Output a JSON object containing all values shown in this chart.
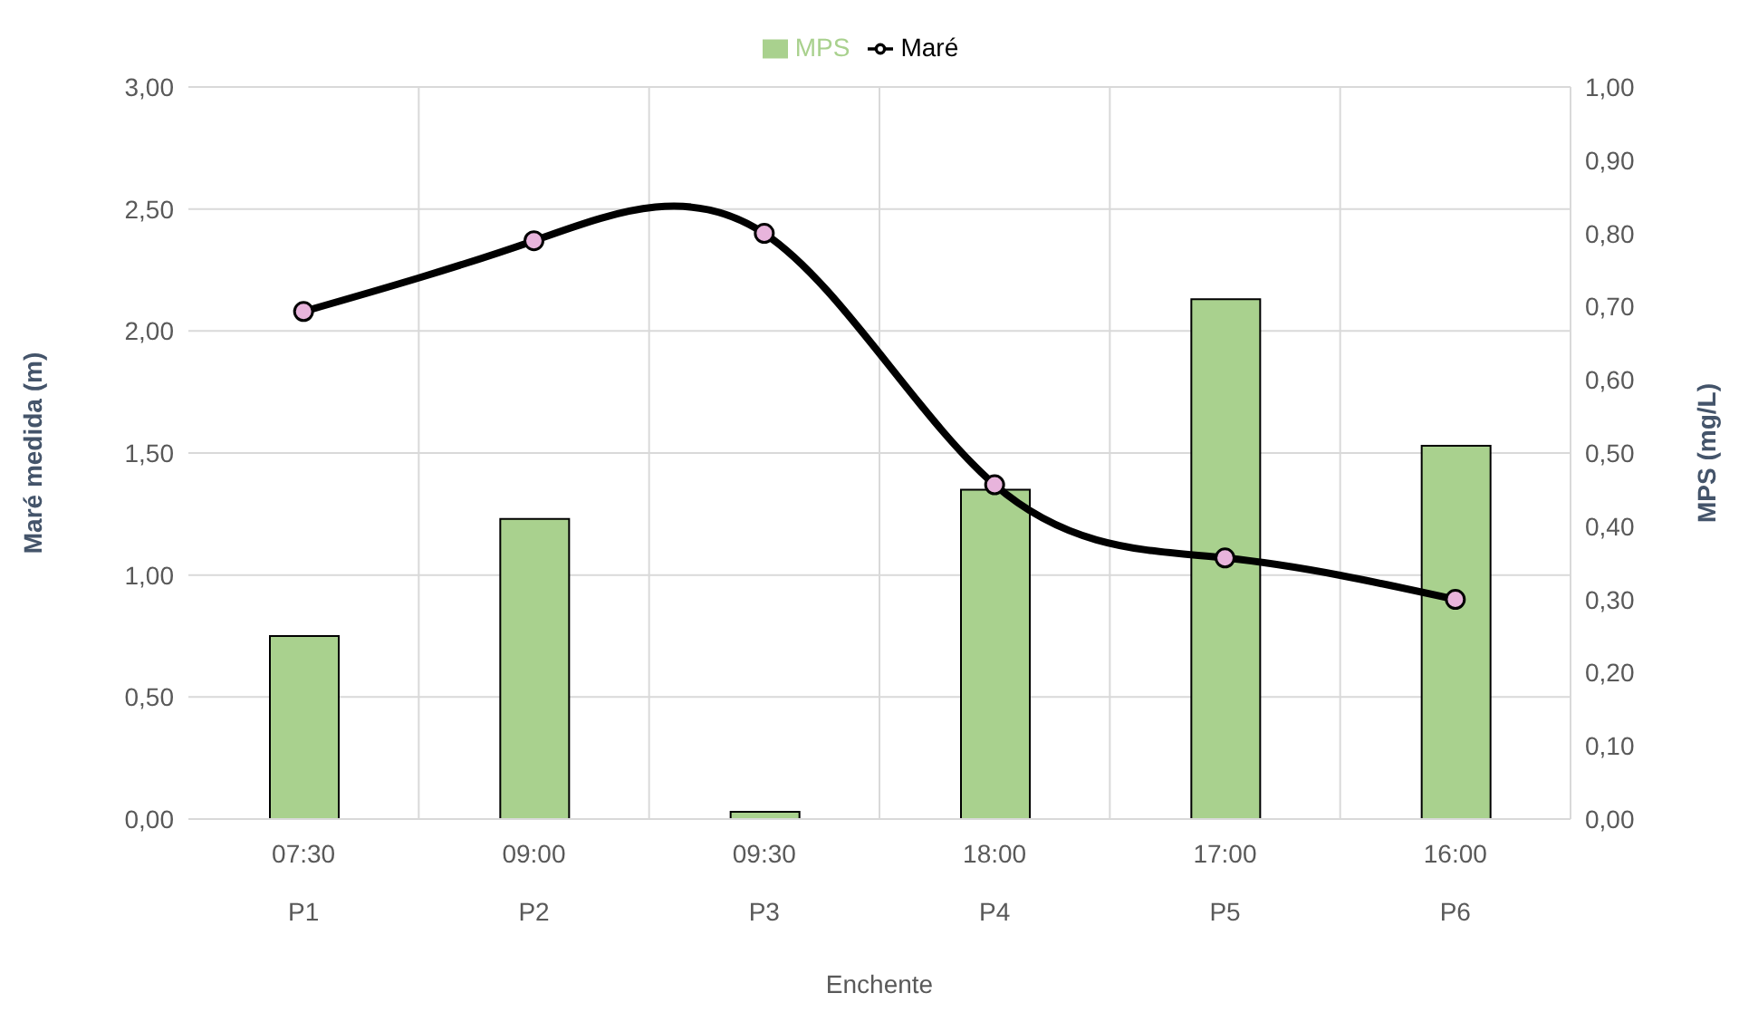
{
  "chart_data": {
    "type": "bar",
    "xlabel": "Enchente",
    "ylabel": "Maré medida (m)",
    "y2label": "MPS (mg/L)",
    "categories": [
      "07:30\nP1",
      "09:00\nP2",
      "09:30\nP3",
      "18:00\nP4",
      "17:00\nP5",
      "16:00\nP6"
    ],
    "series": [
      {
        "name": "MPS",
        "axis": "y2",
        "color": "#a9d18e",
        "values": [
          0.25,
          0.41,
          0.01,
          0.45,
          0.71,
          0.51
        ]
      },
      {
        "name": "Maré",
        "type": "line",
        "color": "#000000",
        "values": [
          2.08,
          2.37,
          2.4,
          1.37,
          1.07,
          0.9
        ],
        "marker": "circle"
      }
    ],
    "ylim": [
      0,
      3
    ],
    "yticks": [
      {
        "value": 0,
        "label": "0,00"
      },
      {
        "value": 0.5,
        "label": "0,50"
      },
      {
        "value": 1,
        "label": "1,00"
      },
      {
        "value": 1.5,
        "label": "1,50"
      },
      {
        "value": 2,
        "label": "2,00"
      },
      {
        "value": 2.5,
        "label": "2,50"
      },
      {
        "value": 3,
        "label": "3,00"
      }
    ],
    "y2lim": [
      0,
      1
    ],
    "y2ticks": [
      {
        "value": 0,
        "label": "0,00"
      },
      {
        "value": 0.1,
        "label": "0,10"
      },
      {
        "value": 0.2,
        "label": "0,20"
      },
      {
        "value": 0.3,
        "label": "0,30"
      },
      {
        "value": 0.4,
        "label": "0,40"
      },
      {
        "value": 0.5,
        "label": "0,50"
      },
      {
        "value": 0.6,
        "label": "0,60"
      },
      {
        "value": 0.7,
        "label": "0,70"
      },
      {
        "value": 0.8,
        "label": "0,80"
      },
      {
        "value": 0.9,
        "label": "0,90"
      },
      {
        "value": 1,
        "label": "1,00"
      }
    ],
    "grid": true,
    "legend": "top"
  }
}
